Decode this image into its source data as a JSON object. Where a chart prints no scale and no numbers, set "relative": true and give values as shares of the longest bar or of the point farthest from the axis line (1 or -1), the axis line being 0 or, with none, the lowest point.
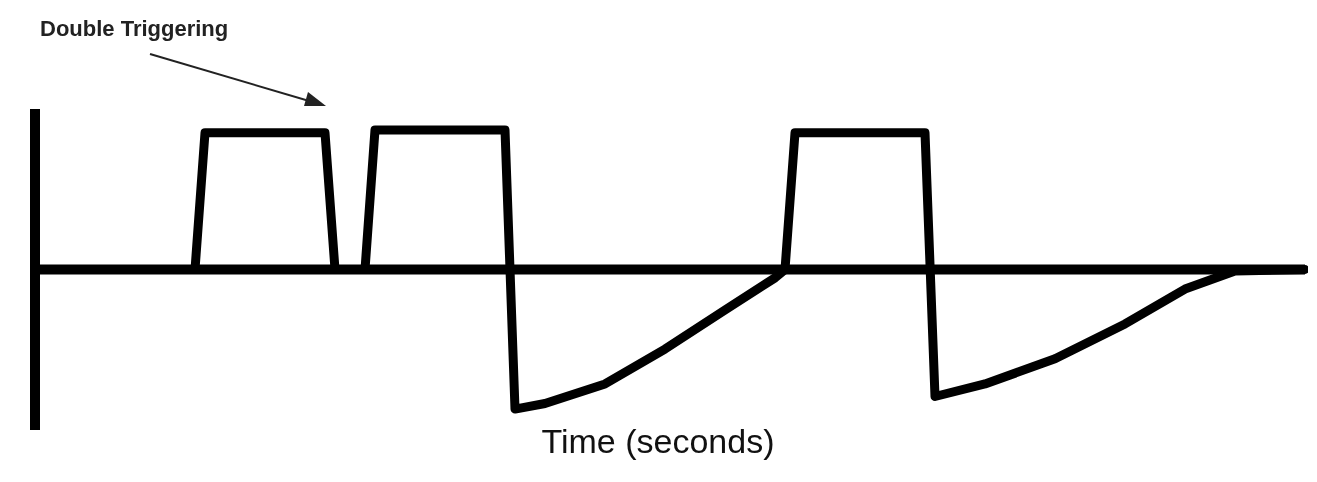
{
  "chart_data": {
    "type": "line",
    "relative": true,
    "xlabel": "Time (seconds)",
    "annotations": [
      "Double Triggering"
    ],
    "marker": "none",
    "line_style": "solid",
    "categories": [
      null,
      null,
      null,
      null,
      null,
      null,
      null,
      null,
      null,
      null,
      null,
      null,
      null,
      null,
      null,
      null,
      null,
      null,
      null,
      null,
      null,
      null,
      null,
      null,
      null,
      null,
      null,
      null,
      null,
      null,
      null,
      null,
      null,
      null,
      null,
      null,
      null,
      null,
      null,
      null,
      null,
      null,
      null,
      null,
      null,
      null,
      null,
      null,
      null,
      null,
      null,
      null,
      null,
      null,
      null,
      null,
      null,
      null,
      null,
      null,
      null,
      null,
      null,
      null,
      null,
      null,
      null,
      null,
      null,
      null,
      null,
      null,
      null,
      null,
      null,
      null,
      null,
      null,
      null,
      null,
      null,
      null,
      null,
      null,
      null,
      null,
      null,
      null,
      null,
      null,
      null,
      null,
      null,
      null,
      null,
      null,
      null,
      null,
      null,
      null,
      null,
      null,
      null,
      null,
      null,
      null,
      null,
      null,
      null,
      null,
      null,
      null,
      null,
      null,
      null,
      null,
      null,
      null,
      null,
      null,
      null,
      null,
      null,
      null,
      null,
      null,
      null,
      null
    ],
    "series": [
      {
        "color": "#000000",
        "values": [
          0,
          null,
          null,
          null,
          null,
          null,
          null,
          null,
          null,
          null,
          null,
          null,
          null,
          null,
          null,
          null,
          0,
          0.98,
          null,
          null,
          null,
          null,
          null,
          null,
          null,
          null,
          null,
          null,
          null,
          0.98,
          0,
          null,
          null,
          0,
          1,
          null,
          null,
          null,
          null,
          null,
          null,
          null,
          null,
          null,
          null,
          null,
          null,
          1,
          -1,
          null,
          null,
          -0.96,
          null,
          null,
          null,
          null,
          null,
          -0.82,
          null,
          null,
          null,
          null,
          null,
          -0.57,
          null,
          null,
          null,
          null,
          null,
          -0.29,
          null,
          null,
          null,
          null,
          -0.06,
          0,
          0.98,
          null,
          null,
          null,
          null,
          null,
          null,
          null,
          null,
          null,
          null,
          null,
          null,
          0.98,
          -0.91,
          null,
          null,
          null,
          null,
          -0.82,
          null,
          null,
          null,
          null,
          null,
          null,
          -0.64,
          null,
          null,
          null,
          null,
          null,
          null,
          -0.39,
          null,
          null,
          null,
          null,
          null,
          -0.14,
          null,
          null,
          null,
          null,
          -0.01,
          null,
          null,
          null,
          null,
          null,
          null,
          0
        ]
      }
    ]
  }
}
